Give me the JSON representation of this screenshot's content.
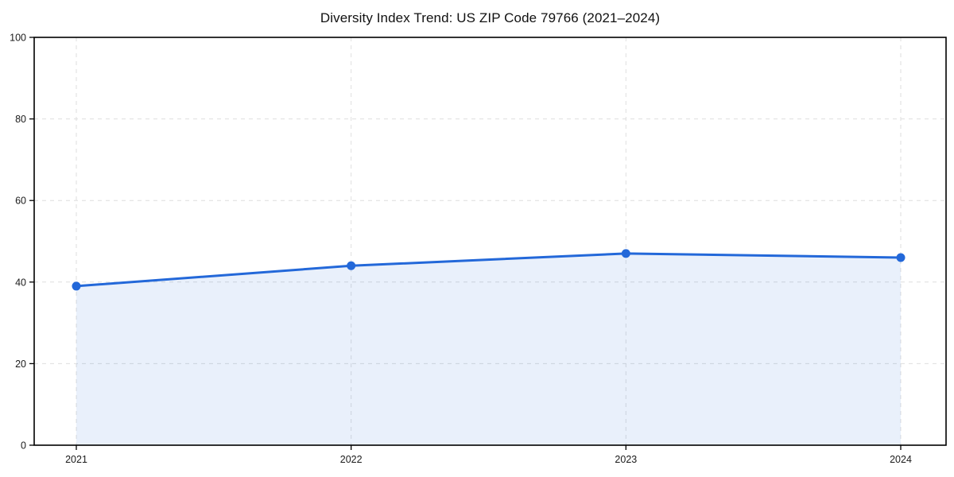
{
  "chart_data": {
    "type": "area",
    "title": "Diversity Index Trend: US ZIP Code 79766 (2021–2024)",
    "x": [
      "2021",
      "2022",
      "2023",
      "2024"
    ],
    "series": [
      {
        "name": "Diversity Index",
        "values": [
          39,
          44,
          47,
          46
        ]
      }
    ],
    "xlabel": "",
    "ylabel": "",
    "ylim": [
      0,
      100
    ],
    "yticks": [
      0,
      20,
      40,
      60,
      80,
      100
    ],
    "xticks": [
      "2021",
      "2022",
      "2023",
      "2024"
    ],
    "grid": true,
    "grid_style": "dashed",
    "legend": false,
    "colors": {
      "line": "#2368d9",
      "marker": "#2368d9",
      "fill": "rgba(35,104,217,0.10)",
      "gridline": "#dedede",
      "spine": "#000000",
      "tick_label": "#1a1a1a",
      "title": "#111111",
      "background": "#ffffff"
    }
  }
}
